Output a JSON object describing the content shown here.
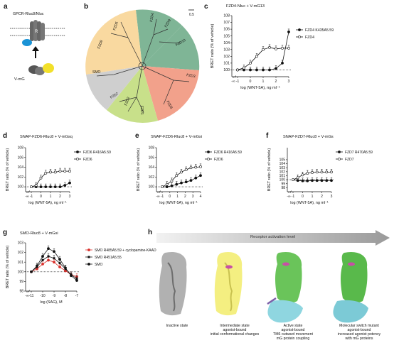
{
  "panels": {
    "a": {
      "letter": "a",
      "label": "GPCR-Rluc8/Nluc",
      "r_label": "R",
      "vmg_label": "V-mG"
    },
    "b": {
      "letter": "b",
      "scale": "0.5",
      "families": [
        "FZD5",
        "FZD8",
        "FZD4",
        "FZD9",
        "FZD10",
        "FZD3",
        "FZD6",
        "FZD1",
        "FZD2",
        "FZD7",
        "SMO"
      ]
    },
    "c": {
      "letter": "c",
      "title": "FZD4-Nluc + V-mG13",
      "legend": [
        "FZD4 K435A5.59",
        "FZD4"
      ],
      "ylabel": "BRET ratio (% of vehicle)",
      "xlabel": "log (WNT-5A), ng ml⁻¹"
    },
    "d": {
      "letter": "d",
      "title": "SNAP-FZD6-Rluc8 + V-mGsq",
      "legend": [
        "FZD6 R416A5.59",
        "FZD6"
      ],
      "ylabel": "BRET ratio (% of vehicle)",
      "xlabel": "log (WNT-5A), ng ml⁻¹"
    },
    "e": {
      "letter": "e",
      "title": "SNAP-FZD6-Rluc8 + V-mGsi",
      "legend": [
        "FZD6 R416A5.59",
        "FZD6"
      ],
      "ylabel": "BRET ratio (% of vehicle)",
      "xlabel": "log (WNT-5A), ng ml⁻¹"
    },
    "f": {
      "letter": "f",
      "title": "SNAP-FZD7-Rluc8 + V-mGs",
      "legend": [
        "FZD7 R470A5.59",
        "FZD7"
      ],
      "ylabel": "BRET ratio (% of vehicle)",
      "xlabel": "log (WNT-5A), ng ml⁻¹"
    },
    "g": {
      "letter": "g",
      "title": "SMO-Rluc8 + V-mGsi",
      "legend": [
        "SMO R485A5.59 + cyclopamine-KAAD",
        "SMO R451A5.55",
        "SMO"
      ],
      "ylabel": "BRET ratio (% of vehicle)",
      "xlabel": "log (SAG), M"
    },
    "h": {
      "letter": "h",
      "arrow_label": "Receptor activation level",
      "captions": [
        "Inactive state",
        "Intermediate state\nagonist-bound\ninitial conformational changes",
        "Active state\nagonist-bound\nTM6 outward movement\nmG protein coupling",
        "Molecular switch mutant\nagonist-bound\nincreased agonist potency\nwith mG proteins"
      ]
    }
  },
  "chart_data": [
    {
      "id": "c",
      "type": "line",
      "title": "FZD4-Nluc + V-mG13",
      "xlabel": "log (WNT-5A), ng ml⁻¹",
      "ylabel": "BRET ratio (% of vehicle)",
      "x": [
        -1,
        -0.5,
        0,
        0.5,
        1,
        1.5,
        2,
        2.5,
        3
      ],
      "ylim": [
        99,
        108
      ],
      "yticks": [
        100,
        101,
        102,
        103,
        104,
        105,
        106,
        107,
        108
      ],
      "xticks": [
        "-∞",
        "-1",
        "0",
        "1",
        "2",
        "3"
      ],
      "series": [
        {
          "name": "FZD4 K435A5.59",
          "values": [
            100,
            100,
            100,
            100,
            100,
            100,
            100.2,
            101,
            105.6
          ]
        },
        {
          "name": "FZD4",
          "values": [
            100,
            100.3,
            101,
            102,
            103,
            103.3,
            103.1,
            103.2,
            103.2
          ]
        }
      ]
    },
    {
      "id": "d",
      "type": "line",
      "title": "SNAP-FZD6-Rluc8 + V-mGsq",
      "xlabel": "log (WNT-5A), ng ml⁻¹",
      "ylabel": "BRET ratio (% of vehicle)",
      "x": [
        -1,
        -0.5,
        0,
        0.5,
        1,
        1.5,
        2,
        2.5,
        3
      ],
      "ylim": [
        99,
        108
      ],
      "yticks": [
        100,
        102,
        104,
        106,
        108
      ],
      "xticks": [
        "-∞",
        "-1",
        "0",
        "1",
        "2",
        "3"
      ],
      "series": [
        {
          "name": "FZD6 R416A5.59",
          "values": [
            100,
            100,
            100,
            100,
            100,
            100,
            100,
            100.3,
            100.8
          ]
        },
        {
          "name": "FZD6",
          "values": [
            100,
            100.3,
            101.8,
            102.8,
            103,
            103,
            103.2,
            103.2,
            103.2
          ]
        }
      ]
    },
    {
      "id": "e",
      "type": "line",
      "title": "SNAP-FZD6-Rluc8 + V-mGsi",
      "xlabel": "log (WNT-5A), ng ml⁻¹",
      "ylabel": "BRET ratio (% of vehicle)",
      "x": [
        -1,
        -0.5,
        0,
        0.5,
        1,
        1.5,
        2,
        2.5,
        3
      ],
      "ylim": [
        99,
        108
      ],
      "yticks": [
        100,
        102,
        104,
        106,
        108
      ],
      "xticks": [
        "-∞",
        "-1",
        "0",
        "1",
        "2",
        "3",
        "4"
      ],
      "series": [
        {
          "name": "FZD6 R416A5.59",
          "values": [
            100,
            100,
            100.2,
            100.5,
            100.8,
            101,
            101.3,
            101.8,
            102.3
          ]
        },
        {
          "name": "FZD6",
          "values": [
            100,
            100.5,
            101.2,
            102.3,
            103,
            103.5,
            103.9,
            104,
            104.1
          ]
        }
      ]
    },
    {
      "id": "f",
      "type": "line",
      "title": "SNAP-FZD7-Rluc8 + V-mGs",
      "xlabel": "log (WNT-5A), ng ml⁻¹",
      "ylabel": "BRET ratio (% of vehicle)",
      "x": [
        -1,
        -0.5,
        0,
        0.5,
        1,
        1.5,
        2,
        2.5,
        3
      ],
      "ylim": [
        97,
        108
      ],
      "yticks": [
        98,
        99,
        100,
        101,
        102,
        103,
        104,
        105
      ],
      "xticks": [
        "-∞",
        "-1",
        "0",
        "1",
        "2",
        "3"
      ],
      "series": [
        {
          "name": "FZD7 R470A5.59",
          "values": [
            100,
            99.8,
            99.7,
            99.7,
            99.8,
            99.8,
            99.8,
            99.8,
            99.8
          ]
        },
        {
          "name": "FZD7",
          "values": [
            100,
            100.5,
            101.2,
            101.6,
            101.8,
            101.9,
            101.9,
            101.9,
            101.9
          ]
        }
      ]
    },
    {
      "id": "g",
      "type": "line",
      "title": "SMO-Rluc8 + V-mGsi",
      "xlabel": "log (SAG), M",
      "ylabel": "BRET ratio (% of vehicle)",
      "x": [
        -11,
        -10.5,
        -10,
        -9.5,
        -9,
        -8.5,
        -8,
        -7.5,
        -7
      ],
      "ylim": [
        98,
        103
      ],
      "yticks": [
        98,
        99,
        100,
        101,
        102,
        103
      ],
      "xticks": [
        "-∞",
        "-11",
        "-10",
        "-9",
        "-8",
        "-7"
      ],
      "series": [
        {
          "name": "SMO R485A5.59 + cyclopamine-KAAD",
          "values": [
            100,
            100.3,
            100.8,
            101.2,
            101,
            100.5,
            100.1,
            99.7,
            99.5
          ]
        },
        {
          "name": "SMO R451A5.55",
          "values": [
            100,
            100.5,
            101.2,
            101.6,
            101.4,
            100.9,
            100.3,
            99.7,
            99.3
          ]
        },
        {
          "name": "SMO",
          "values": [
            100,
            100.6,
            101.6,
            102.4,
            102.1,
            101.3,
            100.4,
            99.6,
            99.1
          ]
        }
      ]
    }
  ]
}
